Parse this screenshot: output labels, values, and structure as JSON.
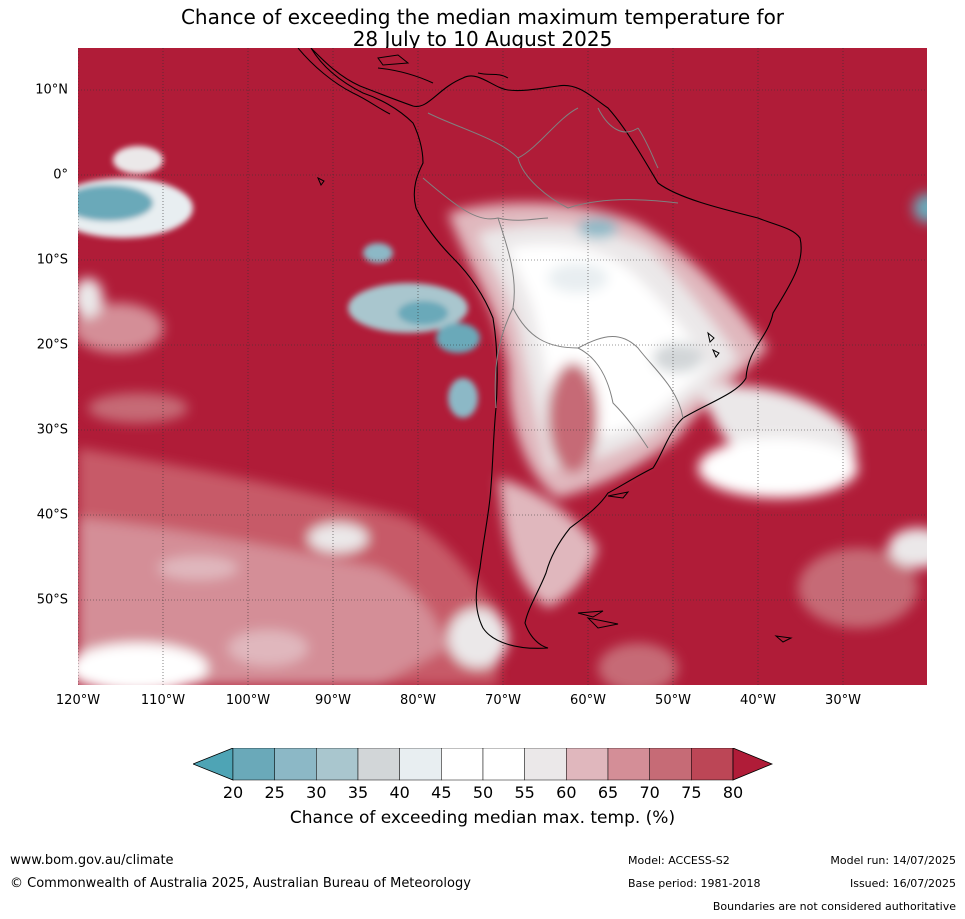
{
  "title": {
    "line1": "Chance of exceeding the median maximum temperature for",
    "line2": "28 July to 10 August 2025"
  },
  "map": {
    "region": "South America and surrounding oceans",
    "lat_labels": [
      "10°N",
      "0°",
      "10°S",
      "20°S",
      "30°S",
      "40°S",
      "50°S"
    ],
    "lat_values": [
      10,
      0,
      -10,
      -20,
      -30,
      -40,
      -50
    ],
    "lon_labels": [
      "120°W",
      "110°W",
      "100°W",
      "90°W",
      "80°W",
      "70°W",
      "60°W",
      "50°W",
      "40°W",
      "30°W"
    ],
    "lon_values": [
      -120,
      -110,
      -100,
      -90,
      -80,
      -70,
      -60,
      -50,
      -40,
      -30
    ],
    "lat_range": [
      -60,
      15
    ],
    "lon_range": [
      -120,
      -20
    ],
    "background_category": ">80%",
    "colors": {
      "coast": "#000000",
      "borders": "#808080",
      "grid": "#333333"
    }
  },
  "colorbar": {
    "ticks": [
      "20",
      "25",
      "30",
      "35",
      "40",
      "45",
      "50",
      "55",
      "60",
      "65",
      "70",
      "75",
      "80"
    ],
    "colors": [
      "#6aa9b9",
      "#8cb8c6",
      "#a9c6ce",
      "#d2d6d8",
      "#e8eef1",
      "#ffffff",
      "#ffffff",
      "#ebe8e9",
      "#e0b7bd",
      "#d48e97",
      "#c66b76",
      "#bc4656"
    ],
    "low_extend_color": "#4ea4b5",
    "high_extend_color": "#b01c38",
    "label": "Chance of exceeding median max. temp. (%)"
  },
  "footer": {
    "website": "www.bom.gov.au/climate",
    "copyright": "© Commonwealth of Australia 2025, Australian Bureau of Meteorology",
    "model": "Model: ACCESS-S2",
    "base_period": "Base period: 1981-2018",
    "model_run": "Model run: 14/07/2025",
    "issued": "Issued: 16/07/2025",
    "disclaimer": "Boundaries are not considered authoritative"
  }
}
